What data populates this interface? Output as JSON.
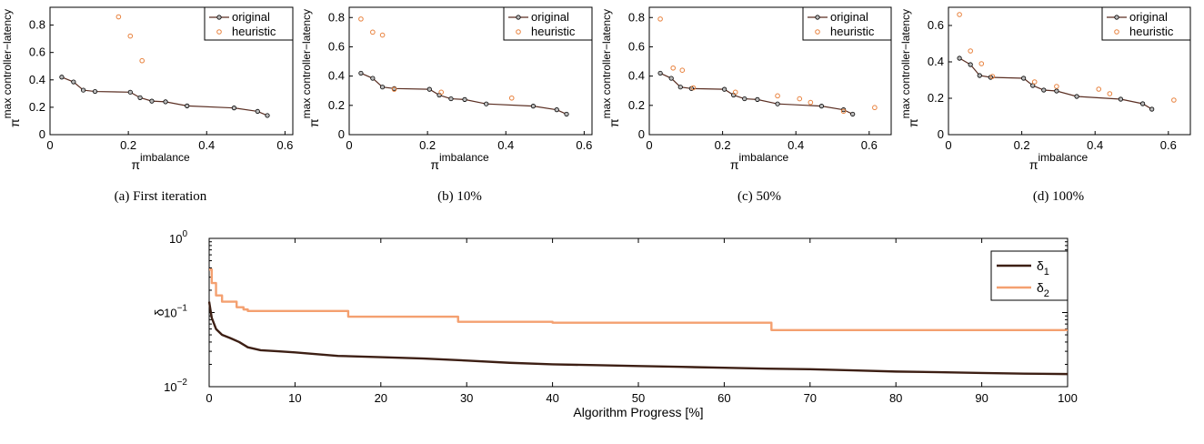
{
  "colors": {
    "original": "#5a2e22",
    "heuristic": "#e8823e",
    "delta1": "#3d1f14",
    "delta2": "#f4a070"
  },
  "chart_data": [
    {
      "type": "scatter",
      "caption": "(a) First iteration",
      "xlabel_base": "π",
      "xlabel_sup": "imbalance",
      "ylabel_base": "π",
      "ylabel_sup": "max controller−latency",
      "xlim": [
        0,
        0.62
      ],
      "ylim": [
        0,
        0.93
      ],
      "xticks": [
        "0",
        "0.2",
        "0.4",
        "0.6"
      ],
      "xtick_values": [
        0,
        0.2,
        0.4,
        0.6
      ],
      "yticks": [
        "0",
        "0.2",
        "0.4",
        "0.6",
        "0.8"
      ],
      "ytick_values": [
        0,
        0.2,
        0.4,
        0.6,
        0.8
      ],
      "legend": [
        "original",
        "heuristic"
      ],
      "series": [
        {
          "name": "original",
          "style": "line-marker",
          "x": [
            0.03,
            0.06,
            0.085,
            0.115,
            0.205,
            0.23,
            0.26,
            0.295,
            0.35,
            0.47,
            0.53,
            0.555
          ],
          "y": [
            0.42,
            0.385,
            0.325,
            0.315,
            0.31,
            0.27,
            0.245,
            0.24,
            0.21,
            0.195,
            0.17,
            0.14
          ]
        },
        {
          "name": "heuristic",
          "style": "marker",
          "x": [
            0.175,
            0.205,
            0.235
          ],
          "y": [
            0.86,
            0.72,
            0.54
          ]
        }
      ]
    },
    {
      "type": "scatter",
      "caption": "(b) 10%",
      "xlabel_base": "π",
      "xlabel_sup": "imbalance",
      "ylabel_base": "π",
      "ylabel_sup": "max controller−latency",
      "xlim": [
        0,
        0.62
      ],
      "ylim": [
        0,
        0.87
      ],
      "xticks": [
        "0",
        "0.2",
        "0.4",
        "0.6"
      ],
      "xtick_values": [
        0,
        0.2,
        0.4,
        0.6
      ],
      "yticks": [
        "0",
        "0.2",
        "0.4",
        "0.6",
        "0.8"
      ],
      "ytick_values": [
        0,
        0.2,
        0.4,
        0.6,
        0.8
      ],
      "legend": [
        "original",
        "heuristic"
      ],
      "series": [
        {
          "name": "original",
          "style": "line-marker",
          "x": [
            0.03,
            0.06,
            0.085,
            0.115,
            0.205,
            0.23,
            0.26,
            0.295,
            0.35,
            0.47,
            0.53,
            0.555
          ],
          "y": [
            0.42,
            0.385,
            0.325,
            0.315,
            0.31,
            0.27,
            0.245,
            0.24,
            0.21,
            0.195,
            0.17,
            0.14
          ]
        },
        {
          "name": "heuristic",
          "style": "marker",
          "x": [
            0.03,
            0.06,
            0.085,
            0.115,
            0.235,
            0.415
          ],
          "y": [
            0.79,
            0.7,
            0.68,
            0.31,
            0.29,
            0.25
          ]
        }
      ]
    },
    {
      "type": "scatter",
      "caption": "(c) 50%",
      "xlabel_base": "π",
      "xlabel_sup": "imbalance",
      "ylabel_base": "π",
      "ylabel_sup": "max controller−latency",
      "xlim": [
        0,
        0.66
      ],
      "ylim": [
        0,
        0.87
      ],
      "xticks": [
        "0",
        "0.2",
        "0.4",
        "0.6"
      ],
      "xtick_values": [
        0,
        0.2,
        0.4,
        0.6
      ],
      "yticks": [
        "0",
        "0.2",
        "0.4",
        "0.6",
        "0.8"
      ],
      "ytick_values": [
        0,
        0.2,
        0.4,
        0.6,
        0.8
      ],
      "legend": [
        "original",
        "heuristic"
      ],
      "series": [
        {
          "name": "original",
          "style": "line-marker",
          "x": [
            0.03,
            0.06,
            0.085,
            0.115,
            0.205,
            0.23,
            0.26,
            0.295,
            0.35,
            0.47,
            0.53,
            0.555
          ],
          "y": [
            0.42,
            0.385,
            0.325,
            0.315,
            0.31,
            0.27,
            0.245,
            0.24,
            0.21,
            0.195,
            0.17,
            0.14
          ]
        },
        {
          "name": "heuristic",
          "style": "marker",
          "x": [
            0.03,
            0.065,
            0.09,
            0.12,
            0.235,
            0.35,
            0.41,
            0.44,
            0.53,
            0.615
          ],
          "y": [
            0.79,
            0.455,
            0.44,
            0.32,
            0.29,
            0.265,
            0.245,
            0.22,
            0.16,
            0.185
          ]
        }
      ]
    },
    {
      "type": "scatter",
      "caption": "(d) 100%",
      "xlabel_base": "π",
      "xlabel_sup": "imbalance",
      "ylabel_base": "π",
      "ylabel_sup": "max controller−latency",
      "xlim": [
        0,
        0.66
      ],
      "ylim": [
        0,
        0.7
      ],
      "xticks": [
        "0",
        "0.2",
        "0.4",
        "0.6"
      ],
      "xtick_values": [
        0,
        0.2,
        0.4,
        0.6
      ],
      "yticks": [
        "0",
        "0.2",
        "0.4",
        "0.6"
      ],
      "ytick_values": [
        0,
        0.2,
        0.4,
        0.6
      ],
      "legend": [
        "original",
        "heuristic"
      ],
      "series": [
        {
          "name": "original",
          "style": "line-marker",
          "x": [
            0.03,
            0.06,
            0.085,
            0.115,
            0.205,
            0.23,
            0.26,
            0.295,
            0.35,
            0.47,
            0.53,
            0.555
          ],
          "y": [
            0.42,
            0.385,
            0.325,
            0.315,
            0.31,
            0.27,
            0.245,
            0.24,
            0.21,
            0.195,
            0.17,
            0.14
          ]
        },
        {
          "name": "heuristic",
          "style": "marker",
          "x": [
            0.03,
            0.06,
            0.09,
            0.12,
            0.235,
            0.295,
            0.41,
            0.44,
            0.615
          ],
          "y": [
            0.66,
            0.46,
            0.39,
            0.32,
            0.29,
            0.265,
            0.25,
            0.225,
            0.19
          ]
        }
      ]
    },
    {
      "type": "line",
      "xlabel": "Algorithm Progress [%]",
      "ylabel": "δ",
      "yscale": "log",
      "xlim": [
        0,
        100
      ],
      "ylim": [
        0.01,
        1
      ],
      "xticks": [
        "0",
        "10",
        "20",
        "30",
        "40",
        "50",
        "60",
        "70",
        "80",
        "90",
        "100"
      ],
      "xtick_values": [
        0,
        10,
        20,
        30,
        40,
        50,
        60,
        70,
        80,
        90,
        100
      ],
      "yticks": [
        {
          "base": "10",
          "exp": "0",
          "value": 1
        },
        {
          "base": "10",
          "exp": "−1",
          "value": 0.1
        },
        {
          "base": "10",
          "exp": "−2",
          "value": 0.01
        }
      ],
      "legend_placement": "top-right",
      "series": [
        {
          "name_base": "δ",
          "name_sub": "1",
          "step": false,
          "x": [
            0,
            0.3,
            0.8,
            1.5,
            2.5,
            3.5,
            4.5,
            6,
            8,
            10,
            15,
            20,
            25,
            30,
            35,
            40,
            45,
            50,
            55,
            60,
            65,
            70,
            75,
            80,
            85,
            90,
            95,
            100
          ],
          "y": [
            0.14,
            0.085,
            0.06,
            0.05,
            0.045,
            0.04,
            0.034,
            0.031,
            0.03,
            0.029,
            0.026,
            0.025,
            0.024,
            0.0225,
            0.021,
            0.02,
            0.0195,
            0.019,
            0.0185,
            0.018,
            0.0175,
            0.0172,
            0.0166,
            0.016,
            0.0157,
            0.0153,
            0.015,
            0.0148
          ]
        },
        {
          "name_base": "δ",
          "name_sub": "2",
          "step": true,
          "x": [
            0,
            0.3,
            0.8,
            1.5,
            3.2,
            4,
            4.5,
            16.2,
            29,
            40,
            65.5,
            100
          ],
          "y": [
            0.38,
            0.25,
            0.17,
            0.14,
            0.118,
            0.11,
            0.105,
            0.088,
            0.075,
            0.073,
            0.058,
            0.058
          ]
        }
      ]
    }
  ]
}
